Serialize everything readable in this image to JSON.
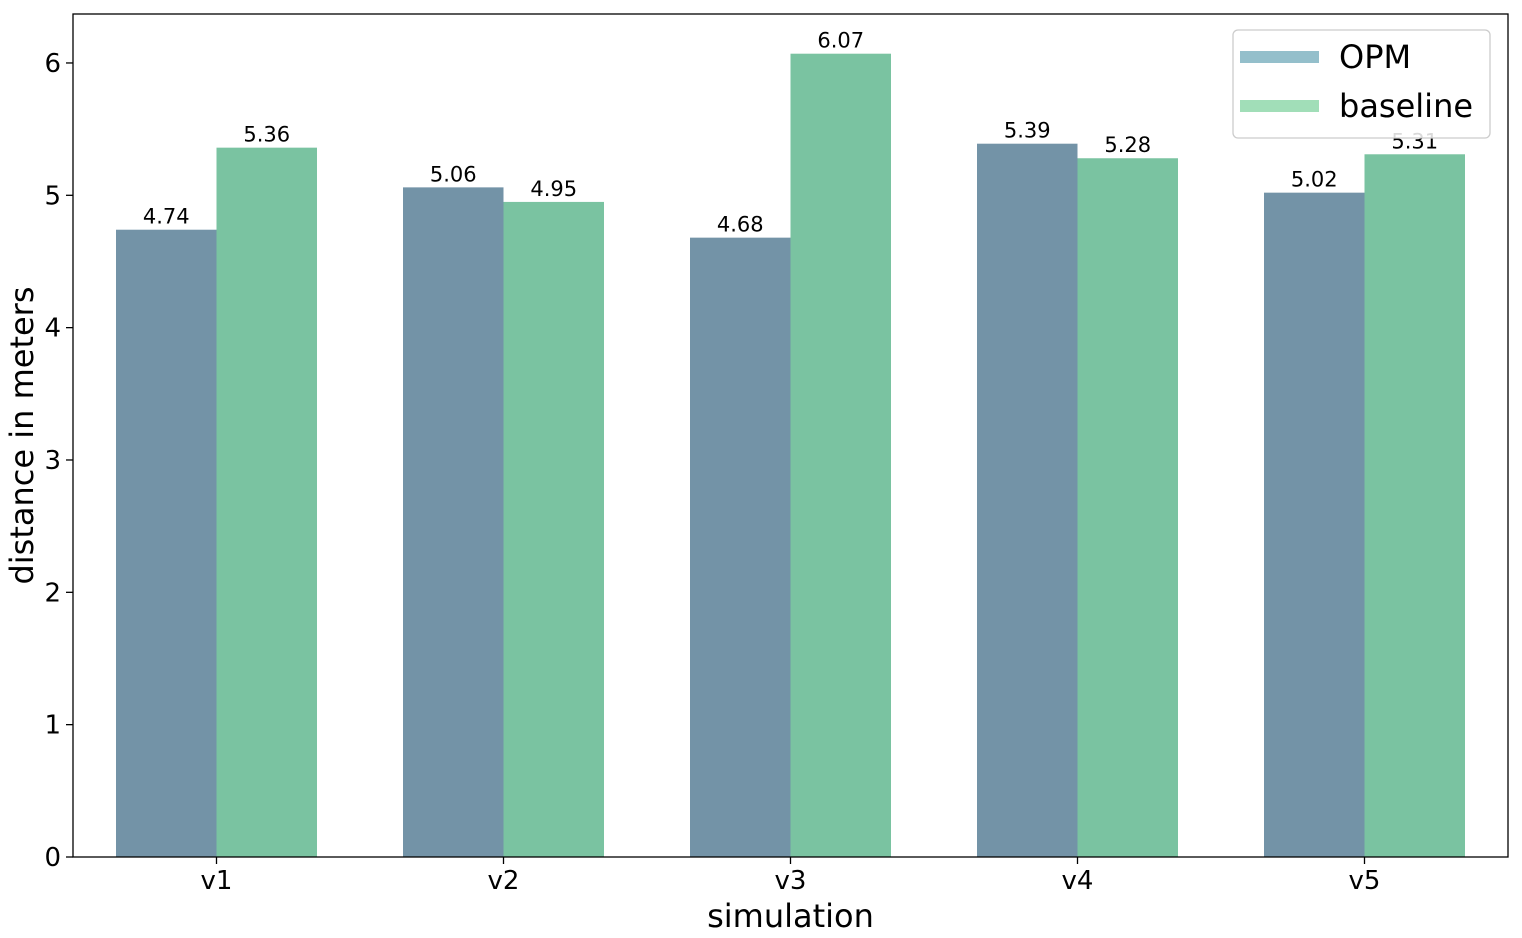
{
  "chart_data": {
    "type": "bar",
    "categories": [
      "v1",
      "v2",
      "v3",
      "v4",
      "v5"
    ],
    "series": [
      {
        "name": "OPM",
        "values": [
          4.74,
          5.06,
          4.68,
          5.39,
          5.02
        ],
        "color": "#7393a7",
        "legend_color": "#94bfcb"
      },
      {
        "name": "baseline",
        "values": [
          5.36,
          4.95,
          6.07,
          5.28,
          5.31
        ],
        "color": "#7ac3a1",
        "legend_color": "#a1deb8"
      }
    ],
    "data_labels": {
      "OPM": [
        "4.74",
        "5.06",
        "4.68",
        "5.39",
        "5.02"
      ],
      "baseline": [
        "5.36",
        "4.95",
        "6.07",
        "5.28",
        "5.31"
      ]
    },
    "title": "",
    "xlabel": "simulation",
    "ylabel": "distance in meters",
    "ylim": [
      0,
      6.37
    ],
    "yticks": [
      0,
      1,
      2,
      3,
      4,
      5,
      6
    ],
    "ytick_labels": [
      "0",
      "1",
      "2",
      "3",
      "4",
      "5",
      "6"
    ],
    "grid": false,
    "legend_position": "top-right"
  }
}
